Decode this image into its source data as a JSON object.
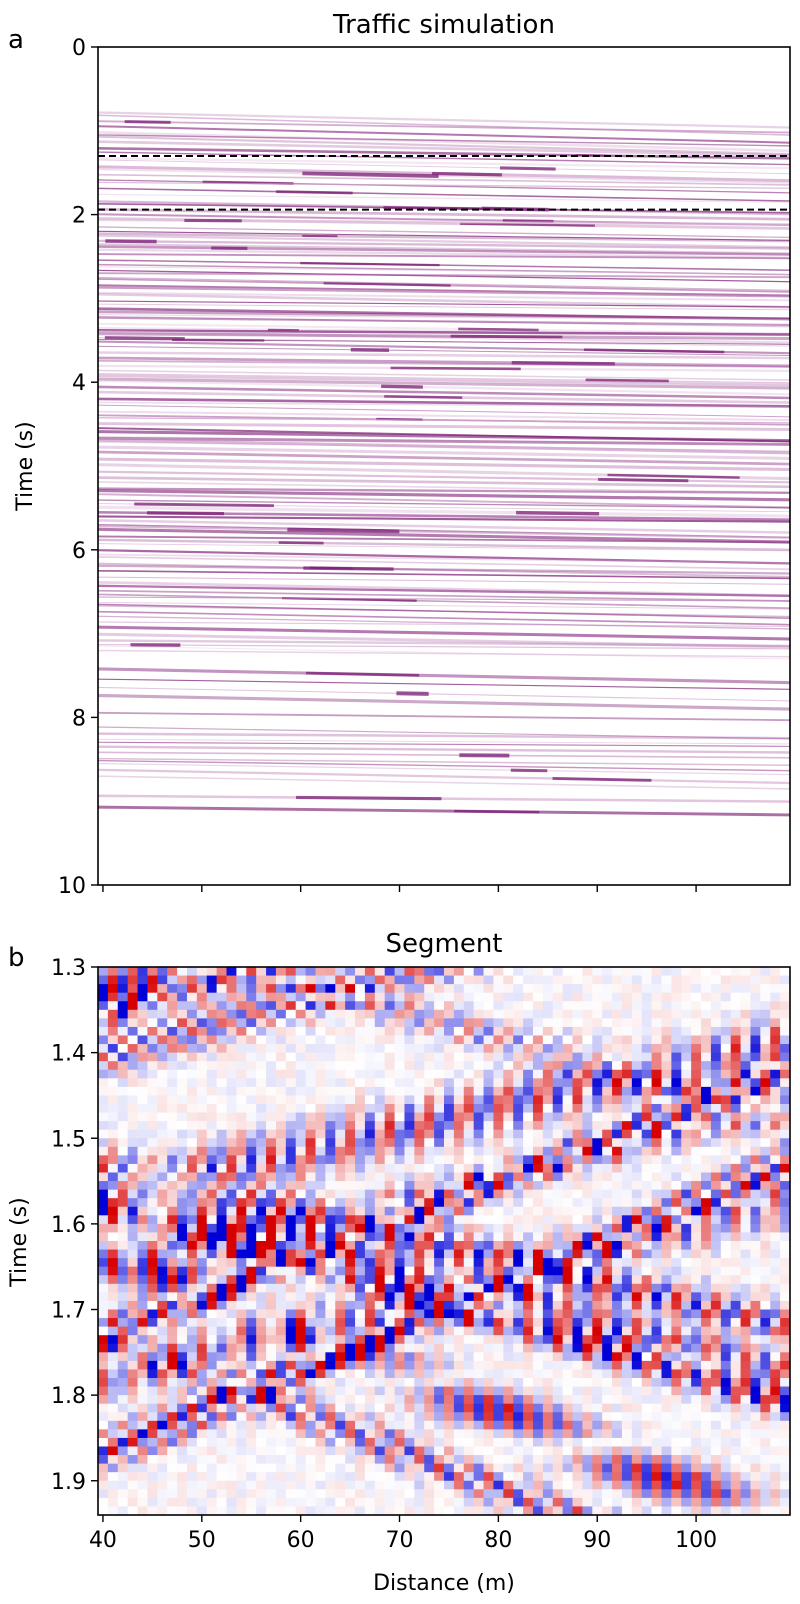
{
  "chart_data": [
    {
      "type": "heatmap",
      "panel_label": "a",
      "title": "Traffic simulation",
      "xlabel": "",
      "ylabel": "Time (s)",
      "xlim": [
        39.5,
        109.5
      ],
      "ylim": [
        10,
        0
      ],
      "y_ticks": [
        0,
        2,
        4,
        6,
        8,
        10
      ],
      "x_ticks": [
        40,
        50,
        60,
        70,
        80,
        90,
        100
      ],
      "x_tick_labels_shown": false,
      "colormap": "white-to-purple",
      "color_high": "#7b1f74",
      "signal_time_range": [
        0.7,
        9.1
      ],
      "reference_lines": [
        {
          "y": 1.3,
          "style": "dashed",
          "color": "#000000"
        },
        {
          "y": 1.94,
          "style": "dashed",
          "color": "#000000"
        }
      ]
    },
    {
      "type": "heatmap",
      "panel_label": "b",
      "title": "Segment",
      "xlabel": "Distance (m)",
      "ylabel": "Time (s)",
      "xlim": [
        39.5,
        109.5
      ],
      "ylim": [
        1.94,
        1.3
      ],
      "y_ticks": [
        1.3,
        1.4,
        1.5,
        1.6,
        1.7,
        1.8,
        1.9
      ],
      "x_ticks": [
        40,
        50,
        60,
        70,
        80,
        90,
        100
      ],
      "colormap": "seismic (blue-white-red)",
      "color_negative": "#0000ee",
      "color_positive": "#dd0000"
    }
  ]
}
